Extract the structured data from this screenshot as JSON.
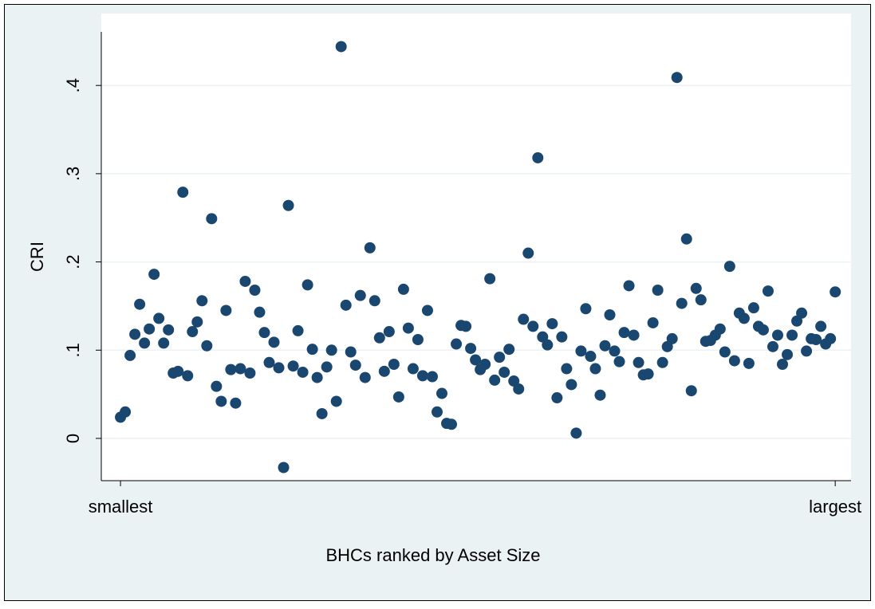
{
  "chart_data": {
    "type": "scatter",
    "x_label": "BHCs ranked by Asset Size",
    "y_label": "CRI",
    "x": [
      1,
      2,
      3,
      4,
      5,
      6,
      7,
      8,
      9,
      10,
      11,
      12,
      13,
      14,
      15,
      16,
      17,
      18,
      19,
      20,
      21,
      22,
      23,
      24,
      25,
      26,
      27,
      28,
      29,
      30,
      31,
      32,
      33,
      34,
      35,
      36,
      37,
      38,
      39,
      40,
      41,
      42,
      43,
      44,
      45,
      46,
      47,
      48,
      49,
      50,
      51,
      52,
      53,
      54,
      55,
      56,
      57,
      58,
      59,
      60,
      61,
      62,
      63,
      64,
      65,
      66,
      67,
      68,
      69,
      70,
      71,
      72,
      73,
      74,
      75,
      76,
      77,
      78,
      79,
      80,
      81,
      82,
      83,
      84,
      85,
      86,
      87,
      88,
      89,
      90,
      91,
      92,
      93,
      94,
      95,
      96,
      97,
      98,
      99,
      100,
      101,
      102,
      103,
      104,
      105,
      106,
      107,
      108,
      109,
      110,
      111,
      112,
      113,
      114,
      115,
      116,
      117,
      118,
      119,
      120,
      121,
      122,
      123,
      124,
      125,
      126,
      127,
      128,
      129,
      130,
      131,
      132,
      133,
      134,
      135,
      136,
      137,
      138,
      139,
      140,
      141,
      142,
      143,
      144,
      145,
      146,
      147,
      148,
      149,
      150
    ],
    "values": [
      0.024,
      0.03,
      0.094,
      0.118,
      0.152,
      0.108,
      0.124,
      0.186,
      0.136,
      0.108,
      0.123,
      0.074,
      0.076,
      0.279,
      0.071,
      0.121,
      0.132,
      0.156,
      0.105,
      0.249,
      0.059,
      0.042,
      0.145,
      0.078,
      0.04,
      0.079,
      0.178,
      0.074,
      0.168,
      0.143,
      0.12,
      0.086,
      0.109,
      0.08,
      -0.033,
      0.264,
      0.082,
      0.122,
      0.075,
      0.174,
      0.101,
      0.069,
      0.028,
      0.081,
      0.1,
      0.042,
      0.444,
      0.151,
      0.098,
      0.083,
      0.162,
      0.069,
      0.216,
      0.156,
      0.114,
      0.076,
      0.121,
      0.084,
      0.047,
      0.169,
      0.125,
      0.079,
      0.112,
      0.071,
      0.145,
      0.07,
      0.03,
      0.051,
      0.017,
      0.016,
      0.107,
      0.128,
      0.127,
      0.102,
      0.089,
      0.078,
      0.084,
      0.181,
      0.066,
      0.092,
      0.075,
      0.101,
      0.065,
      0.056,
      0.135,
      0.21,
      0.127,
      0.318,
      0.115,
      0.106,
      0.13,
      0.046,
      0.115,
      0.079,
      0.061,
      0.006,
      0.099,
      0.147,
      0.093,
      0.079,
      0.049,
      0.105,
      0.14,
      0.099,
      0.087,
      0.12,
      0.173,
      0.117,
      0.086,
      0.072,
      0.073,
      0.131,
      0.168,
      0.086,
      0.104,
      0.113,
      0.409,
      0.153,
      0.226,
      0.054,
      0.17,
      0.157,
      0.11,
      0.111,
      0.117,
      0.124,
      0.098,
      0.195,
      0.088,
      0.142,
      0.136,
      0.085,
      0.148,
      0.127,
      0.123,
      0.167,
      0.104,
      0.117,
      0.084,
      0.095,
      0.117,
      0.133,
      0.142,
      0.099,
      0.113,
      0.112,
      0.127,
      0.107,
      0.113,
      0.166
    ],
    "color": "#1a476f",
    "xlim": [
      -3,
      153.3
    ],
    "xticks": [
      {
        "value": 1,
        "label": "smallest"
      },
      {
        "value": 150,
        "label": "largest"
      }
    ],
    "ylim": [
      -0.0479,
      0.4607
    ],
    "yticks": [
      0,
      {
        "value": 0.1,
        "label": ".1"
      },
      {
        "value": 0.2,
        "label": ".2"
      },
      {
        "value": 0.3,
        "label": ".3"
      },
      {
        "value": 0.4,
        "label": ".4"
      }
    ],
    "grid": true
  }
}
